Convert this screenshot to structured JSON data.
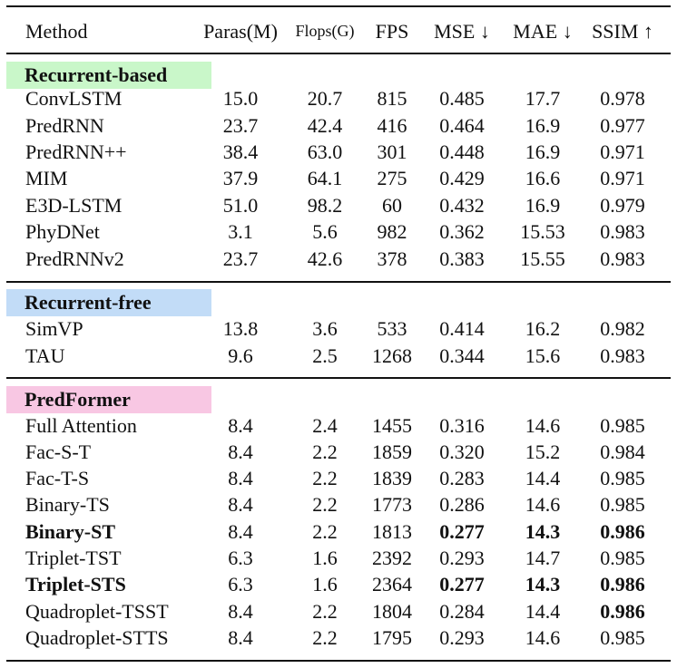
{
  "colors": {
    "recurrent_based": "#c9f7c9",
    "recurrent_free": "#c2dcf7",
    "predformer": "#f8c7e3"
  },
  "header": [
    "Method",
    "Paras(M)",
    "Flops(G)",
    "FPS",
    "MSE ↓",
    "MAE ↓",
    "SSIM ↑"
  ],
  "groups": [
    {
      "label": "Recurrent-based",
      "rows": [
        {
          "m": "ConvLSTM",
          "v": [
            "15.0",
            "20.7",
            "815",
            "0.485",
            "17.7",
            "0.978"
          ]
        },
        {
          "m": "PredRNN",
          "v": [
            "23.7",
            "42.4",
            "416",
            "0.464",
            "16.9",
            "0.977"
          ]
        },
        {
          "m": "PredRNN++",
          "v": [
            "38.4",
            "63.0",
            "301",
            "0.448",
            "16.9",
            "0.971"
          ]
        },
        {
          "m": "MIM",
          "v": [
            "37.9",
            "64.1",
            "275",
            "0.429",
            "16.6",
            "0.971"
          ]
        },
        {
          "m": "E3D-LSTM",
          "v": [
            "51.0",
            "98.2",
            "60",
            "0.432",
            "16.9",
            "0.979"
          ]
        },
        {
          "m": "PhyDNet",
          "v": [
            "3.1",
            "5.6",
            "982",
            "0.362",
            "15.53",
            "0.983"
          ]
        },
        {
          "m": "PredRNNv2",
          "v": [
            "23.7",
            "42.6",
            "378",
            "0.383",
            "15.55",
            "0.983"
          ]
        }
      ]
    },
    {
      "label": "Recurrent-free",
      "rows": [
        {
          "m": "SimVP",
          "v": [
            "13.8",
            "3.6",
            "533",
            "0.414",
            "16.2",
            "0.982"
          ]
        },
        {
          "m": "TAU",
          "v": [
            "9.6",
            "2.5",
            "1268",
            "0.344",
            "15.6",
            "0.983"
          ]
        }
      ]
    },
    {
      "label": "PredFormer",
      "rows": [
        {
          "m": "Full Attention",
          "v": [
            "8.4",
            "2.4",
            "1455",
            "0.316",
            "14.6",
            "0.985"
          ]
        },
        {
          "m": "Fac-S-T",
          "v": [
            "8.4",
            "2.2",
            "1859",
            "0.320",
            "15.2",
            "0.984"
          ]
        },
        {
          "m": "Fac-T-S",
          "v": [
            "8.4",
            "2.2",
            "1839",
            "0.283",
            "14.4",
            "0.985"
          ]
        },
        {
          "m": "Binary-TS",
          "v": [
            "8.4",
            "2.2",
            "1773",
            "0.286",
            "14.6",
            "0.985"
          ]
        },
        {
          "m": "Binary-ST",
          "v": [
            "8.4",
            "2.2",
            "1813",
            "0.277",
            "14.3",
            "0.986"
          ]
        },
        {
          "m": "Triplet-TST",
          "v": [
            "6.3",
            "1.6",
            "2392",
            "0.293",
            "14.7",
            "0.985"
          ]
        },
        {
          "m": "Triplet-STS",
          "v": [
            "6.3",
            "1.6",
            "2364",
            "0.277",
            "14.3",
            "0.986"
          ]
        },
        {
          "m": "Quadroplet-TSST",
          "v": [
            "8.4",
            "2.2",
            "1804",
            "0.284",
            "14.4",
            "0.986"
          ]
        },
        {
          "m": "Quadroplet-STTS",
          "v": [
            "8.4",
            "2.2",
            "1795",
            "0.293",
            "14.6",
            "0.985"
          ]
        }
      ]
    }
  ]
}
